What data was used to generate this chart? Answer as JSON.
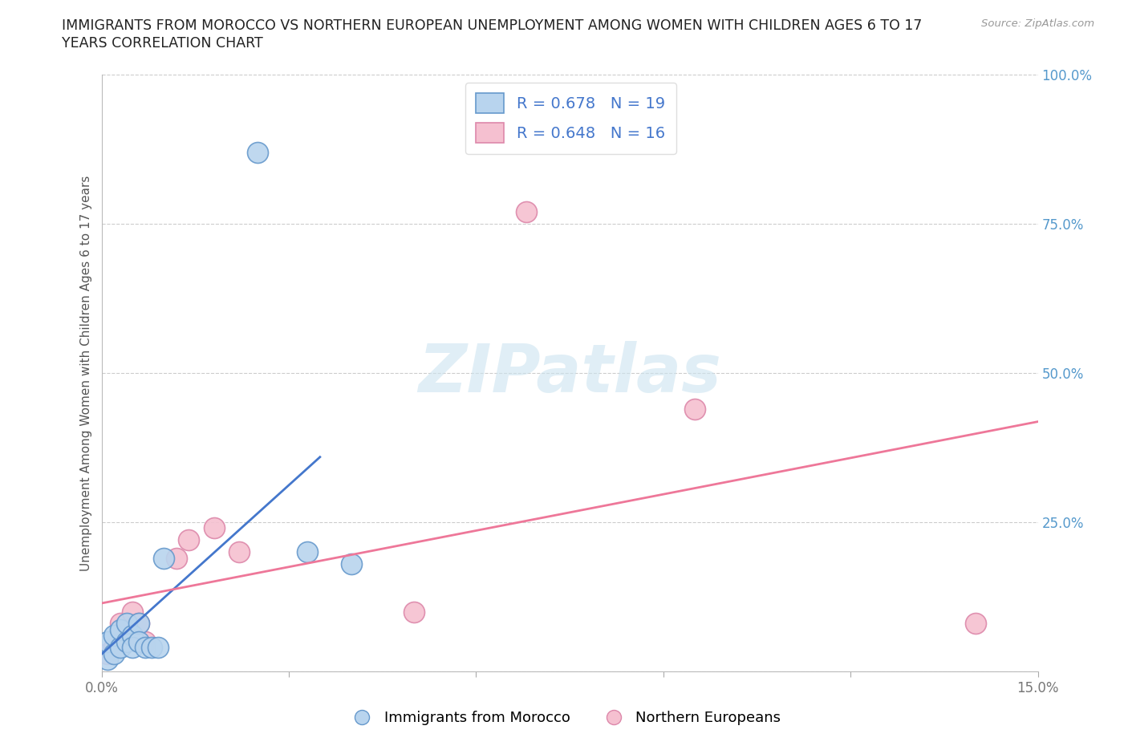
{
  "title_line1": "IMMIGRANTS FROM MOROCCO VS NORTHERN EUROPEAN UNEMPLOYMENT AMONG WOMEN WITH CHILDREN AGES 6 TO 17",
  "title_line2": "YEARS CORRELATION CHART",
  "source": "Source: ZipAtlas.com",
  "ylabel": "Unemployment Among Women with Children Ages 6 to 17 years",
  "watermark": "ZIPatlas",
  "blue_label": "Immigrants from Morocco",
  "pink_label": "Northern Europeans",
  "blue_R": 0.678,
  "blue_N": 19,
  "pink_R": 0.648,
  "pink_N": 16,
  "xlim": [
    0.0,
    0.15
  ],
  "ylim": [
    0.0,
    1.0
  ],
  "blue_color": "#b8d4ee",
  "blue_edge": "#6699cc",
  "pink_color": "#f5c0d0",
  "pink_edge": "#dd88aa",
  "blue_line_color": "#4477cc",
  "pink_line_color": "#ee7799",
  "background": "#ffffff",
  "grid_color": "#cccccc",
  "tick_color": "#aaaaaa",
  "blue_x": [
    0.001,
    0.001,
    0.002,
    0.002,
    0.003,
    0.003,
    0.004,
    0.004,
    0.005,
    0.005,
    0.006,
    0.006,
    0.007,
    0.008,
    0.009,
    0.01,
    0.025,
    0.033,
    0.04
  ],
  "blue_y": [
    0.02,
    0.05,
    0.03,
    0.06,
    0.04,
    0.07,
    0.05,
    0.08,
    0.06,
    0.04,
    0.08,
    0.05,
    0.04,
    0.04,
    0.04,
    0.19,
    0.87,
    0.2,
    0.18
  ],
  "pink_x": [
    0.001,
    0.002,
    0.003,
    0.003,
    0.004,
    0.005,
    0.006,
    0.007,
    0.012,
    0.014,
    0.018,
    0.022,
    0.05,
    0.068,
    0.095,
    0.14
  ],
  "pink_y": [
    0.03,
    0.04,
    0.06,
    0.08,
    0.06,
    0.1,
    0.08,
    0.05,
    0.19,
    0.22,
    0.24,
    0.2,
    0.1,
    0.77,
    0.44,
    0.08
  ],
  "blue_line_x": [
    0.0,
    0.035
  ],
  "pink_line_x": [
    0.0,
    0.15
  ],
  "marker_size": 350,
  "right_ytick_color": "#5599cc"
}
